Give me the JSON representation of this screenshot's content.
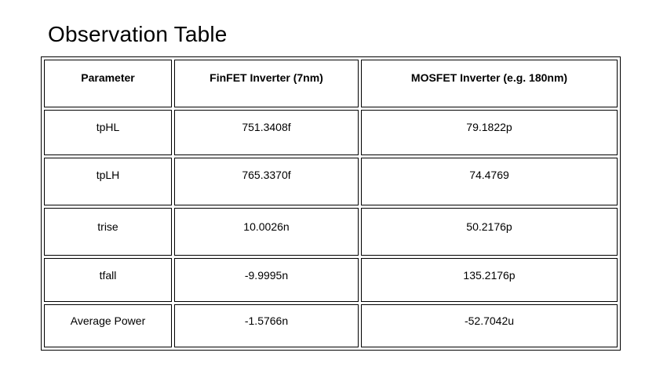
{
  "title": "Observation Table",
  "table": {
    "headers": [
      "Parameter",
      "FinFET Inverter (7nm)",
      "MOSFET Inverter (e.g. 180nm)"
    ],
    "rows": [
      [
        "tpHL",
        "751.3408f",
        "79.1822p"
      ],
      [
        "tpLH",
        "765.3370f",
        "74.4769"
      ],
      [
        "trise",
        "10.0026n",
        "50.2176p"
      ],
      [
        "tfall",
        "-9.9995n",
        "135.2176p"
      ],
      [
        "Average Power",
        "-1.5766n",
        "-52.7042u"
      ]
    ]
  }
}
